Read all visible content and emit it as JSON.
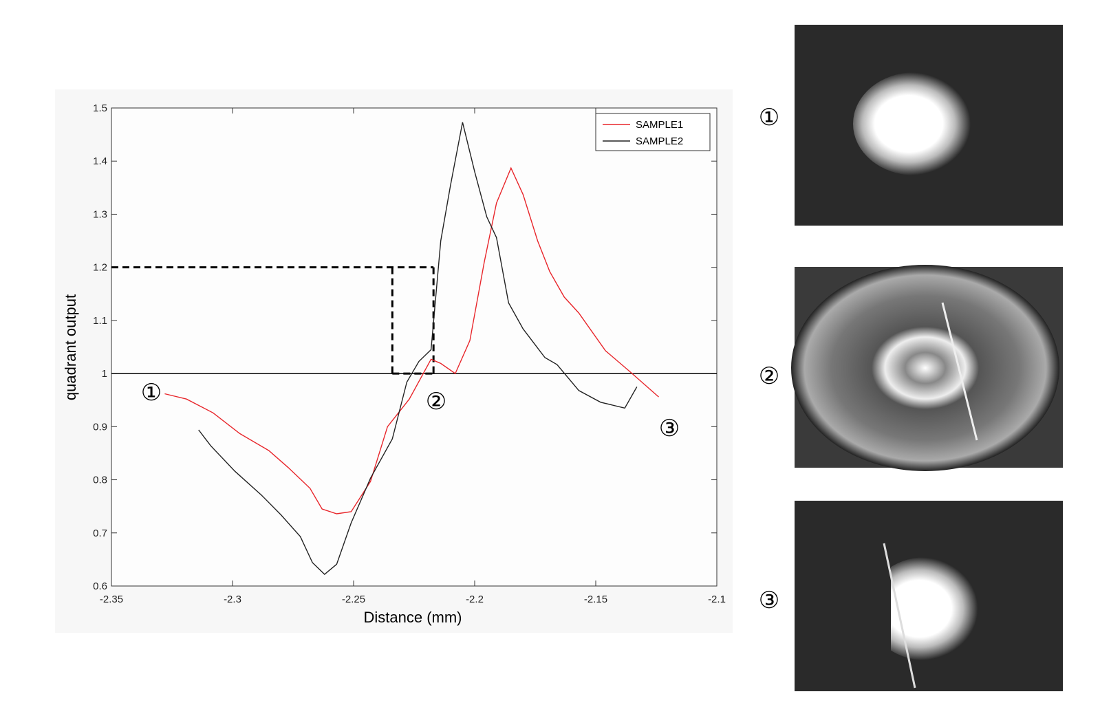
{
  "chart_data": {
    "type": "line",
    "xlabel": "Distance (mm)",
    "ylabel": "quadrant output",
    "xlim": [
      -2.35,
      -2.1
    ],
    "ylim": [
      0.6,
      1.5
    ],
    "xticks": [
      -2.35,
      -2.3,
      -2.25,
      -2.2,
      -2.15,
      -2.1
    ],
    "yticks": [
      0.6,
      0.7,
      0.8,
      0.9,
      1,
      1.1,
      1.2,
      1.3,
      1.4,
      1.5
    ],
    "legend": "upper right",
    "reference_line": 1,
    "highlight_box": {
      "x": [
        -2.234,
        -2.217
      ],
      "y": [
        1,
        1.2
      ]
    },
    "annotations": [
      "①",
      "②",
      "③"
    ],
    "series": [
      {
        "name": "SAMPLE1",
        "color": "#e8262b",
        "x": [
          -2.328,
          -2.319,
          -2.308,
          -2.297,
          -2.285,
          -2.277,
          -2.268,
          -2.263,
          -2.257,
          -2.251,
          -2.243,
          -2.236,
          -2.227,
          -2.218,
          -2.214,
          -2.208,
          -2.202,
          -2.196,
          -2.191,
          -2.185,
          -2.18,
          -2.174,
          -2.169,
          -2.163,
          -2.157,
          -2.146,
          -2.136,
          -2.124
        ],
        "values": [
          0.962,
          0.952,
          0.926,
          0.887,
          0.855,
          0.823,
          0.784,
          0.745,
          0.736,
          0.74,
          0.797,
          0.9,
          0.952,
          1.027,
          1.019,
          1.0,
          1.062,
          1.211,
          1.321,
          1.387,
          1.337,
          1.25,
          1.192,
          1.144,
          1.114,
          1.043,
          1.004,
          0.956
        ]
      },
      {
        "name": "SAMPLE2",
        "color": "#222222",
        "x": [
          -2.314,
          -2.309,
          -2.299,
          -2.288,
          -2.28,
          -2.272,
          -2.267,
          -2.262,
          -2.257,
          -2.251,
          -2.243,
          -2.234,
          -2.228,
          -2.223,
          -2.218,
          -2.214,
          -2.21,
          -2.205,
          -2.2,
          -2.195,
          -2.191,
          -2.186,
          -2.18,
          -2.171,
          -2.166,
          -2.157,
          -2.148,
          -2.138,
          -2.133
        ],
        "values": [
          0.894,
          0.864,
          0.816,
          0.771,
          0.734,
          0.693,
          0.644,
          0.622,
          0.641,
          0.719,
          0.803,
          0.877,
          0.984,
          1.023,
          1.045,
          1.25,
          1.354,
          1.473,
          1.38,
          1.295,
          1.256,
          1.133,
          1.084,
          1.03,
          1.017,
          0.968,
          0.946,
          0.935,
          0.975
        ]
      }
    ]
  },
  "panels": [
    {
      "label": "①"
    },
    {
      "label": "②"
    },
    {
      "label": "③"
    }
  ]
}
